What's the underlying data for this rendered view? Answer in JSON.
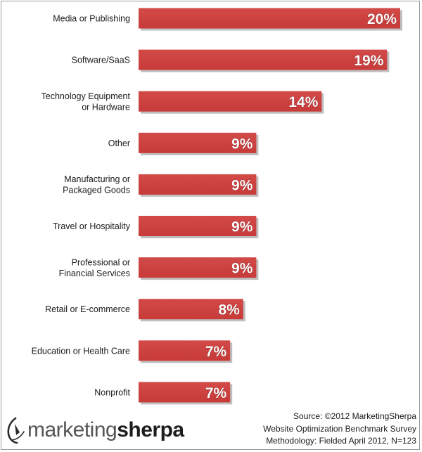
{
  "chart_data": {
    "type": "bar",
    "orientation": "horizontal",
    "categories": [
      [
        "Media or Publishing"
      ],
      [
        "Software/SaaS"
      ],
      [
        "Technology Equipment",
        "or Hardware"
      ],
      [
        "Other"
      ],
      [
        "Manufacturing or",
        "Packaged Goods"
      ],
      [
        "Travel or Hospitality"
      ],
      [
        "Professional  or",
        "Financial Services"
      ],
      [
        "Retail or E-commerce"
      ],
      [
        "Education or Health Care"
      ],
      [
        "Nonprofit"
      ]
    ],
    "values": [
      20,
      19,
      14,
      9,
      9,
      9,
      9,
      8,
      7,
      7
    ],
    "value_labels": [
      "20%",
      "19%",
      "14%",
      "9%",
      "9%",
      "9%",
      "9%",
      "8%",
      "7%",
      "7%"
    ],
    "xlim": [
      0,
      20
    ],
    "grid": false,
    "legend": "none",
    "bar_color": "#d04341",
    "shadow_color": "#8a8a8a"
  },
  "source": {
    "line1": "Source: ©2012 MarketingSherpa",
    "line2": "Website Optimization Benchmark Survey",
    "line3": "Methodology: Fielded  April 2012, N=123"
  },
  "brand": {
    "part1": "marketing",
    "part2": "sherpa",
    "icon": "marketingsherpa-logo-icon"
  }
}
